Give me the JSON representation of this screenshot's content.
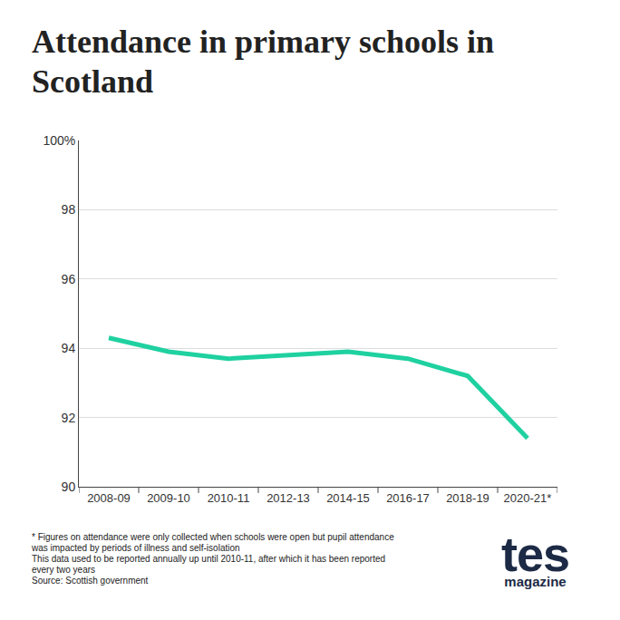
{
  "chart_data": {
    "type": "line",
    "title": "Attendance in primary schools in Scotland",
    "categories": [
      "2008-09",
      "2009-10",
      "2010-11",
      "2012-13",
      "2014-15",
      "2016-17",
      "2018-19",
      "2020-21*"
    ],
    "values": [
      94.3,
      93.9,
      93.7,
      93.8,
      93.9,
      93.7,
      93.2,
      91.4
    ],
    "color": "#1fd1a0",
    "ylim": [
      90,
      100
    ],
    "yticks": [
      90,
      92,
      94,
      96,
      98,
      {
        "value": 100,
        "label": "100%"
      }
    ],
    "grid": true,
    "footnotes": [
      "* Figures on attendance were only collected when schools were open but pupil attendance was impacted by periods of illness and self-isolation",
      "This data used to be reported annually up until 2010-11, after which it has been reported every two years",
      "Source: Scottish government"
    ],
    "logo": [
      "tes",
      "magazine"
    ]
  }
}
